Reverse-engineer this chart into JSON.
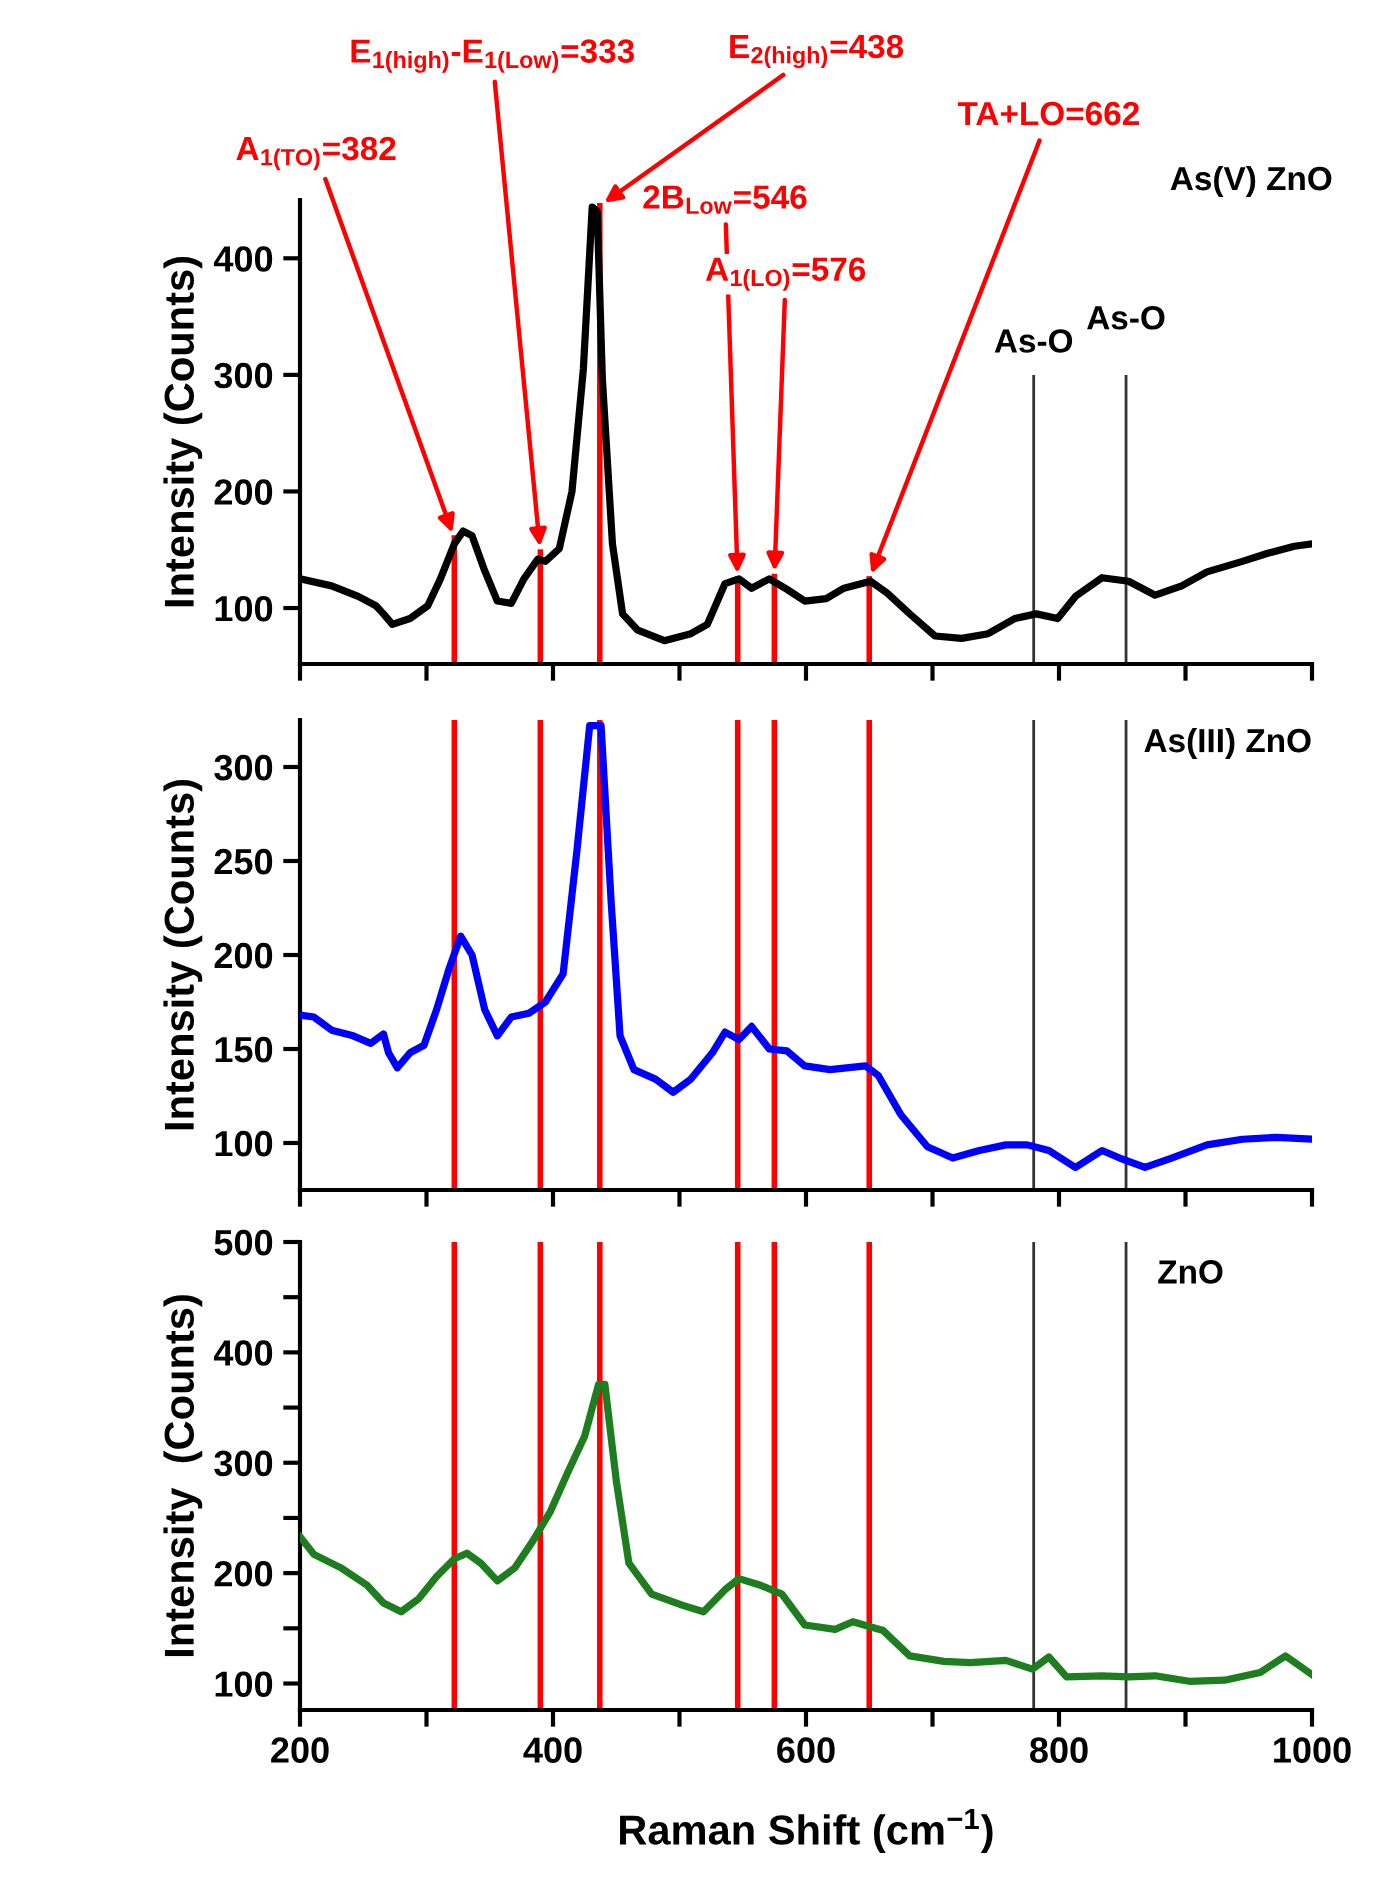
{
  "chart_data": [
    {
      "type": "line",
      "ylabel": "Intensity (Counts)",
      "xlim": [
        200,
        1000
      ],
      "ylim": [
        52,
        450
      ],
      "tick_labels": "y",
      "xticks": [
        {
          "value": 200,
          "label": null
        },
        {
          "value": 300,
          "label": null
        },
        {
          "value": 400,
          "label": null
        },
        {
          "value": 500,
          "label": null
        },
        {
          "value": 600,
          "label": null
        },
        {
          "value": 700,
          "label": null
        },
        {
          "value": 800,
          "label": null
        },
        {
          "value": 900,
          "label": null
        },
        {
          "value": 1000,
          "label": null
        }
      ],
      "yticks": [
        100,
        200,
        300,
        400
      ],
      "grid": false,
      "legend": false,
      "marker": "none",
      "line_style": "solid",
      "series": [
        {
          "color": "#000000",
          "x": [
            200,
            225,
            246,
            260,
            266,
            273,
            287,
            301,
            311,
            322,
            329,
            336,
            346,
            356,
            367,
            377,
            388,
            394,
            405,
            415,
            424,
            431,
            435,
            439,
            447,
            455,
            467,
            488,
            509,
            522,
            536,
            547,
            557,
            571,
            585,
            599,
            616,
            630,
            651,
            664,
            682,
            702,
            723,
            744,
            765,
            782,
            799,
            813,
            834,
            855,
            876,
            897,
            917,
            945,
            965,
            986,
            1000
          ],
          "values": [
            125,
            119,
            110,
            102,
            95,
            86,
            91,
            102,
            125,
            155,
            166,
            162,
            132,
            106,
            104,
            125,
            142,
            140,
            151,
            200,
            305,
            444,
            440,
            297,
            155,
            95,
            81,
            72,
            78,
            86,
            121,
            125,
            117,
            125,
            116,
            106,
            108,
            117,
            123,
            113,
            95,
            76,
            74,
            78,
            91,
            95,
            91,
            110,
            126,
            123,
            111,
            119,
            131,
            140,
            147,
            153,
            155
          ]
        }
      ],
      "ref_lines": [
        {
          "axis": "x",
          "value": 322,
          "color": "#ff0000"
        },
        {
          "axis": "x",
          "value": 390,
          "color": "#ff0000"
        },
        {
          "axis": "x",
          "value": 437,
          "color": "#ff0000"
        },
        {
          "axis": "x",
          "value": 546,
          "color": "#ff0000"
        },
        {
          "axis": "x",
          "value": 575,
          "color": "#ff0000"
        },
        {
          "axis": "x",
          "value": 650,
          "color": "#ff0000"
        },
        {
          "axis": "x",
          "value": 780,
          "label": "As-O",
          "color": "#333333"
        },
        {
          "axis": "x",
          "value": 853,
          "label": "As-O",
          "color": "#333333"
        }
      ],
      "annotations": [
        {
          "text": "A$_{1(TO)}$=382",
          "x": 322,
          "y": 160
        },
        {
          "text": "E$_{1(high)}$-E$_{1(Low)}$=333",
          "x": 390,
          "y": 148
        },
        {
          "text": "E$_{2(high)}$=438",
          "x": 437,
          "y": 445
        },
        {
          "text": "2B$_{Low}$=546",
          "x": 546,
          "y": 125
        },
        {
          "text": "A$_{1(LO)}$=576",
          "x": 575,
          "y": 127
        },
        {
          "text": "TA+LO=662",
          "x": 650,
          "y": 125
        },
        "As(V) ZnO"
      ]
    },
    {
      "type": "line",
      "ylabel": "Intensity (Counts)",
      "xlim": [
        200,
        1000
      ],
      "ylim": [
        75,
        325
      ],
      "tick_labels": "y",
      "xticks": [
        {
          "value": 200,
          "label": null
        },
        {
          "value": 300,
          "label": null
        },
        {
          "value": 400,
          "label": null
        },
        {
          "value": 500,
          "label": null
        },
        {
          "value": 600,
          "label": null
        },
        {
          "value": 700,
          "label": null
        },
        {
          "value": 800,
          "label": null
        },
        {
          "value": 900,
          "label": null
        },
        {
          "value": 1000,
          "label": null
        }
      ],
      "yticks": [
        100,
        150,
        200,
        250,
        300
      ],
      "grid": false,
      "legend": false,
      "marker": "none",
      "line_style": "solid",
      "series": [
        {
          "color": "#0000ff",
          "x": [
            200,
            211,
            225,
            242,
            256,
            266,
            270,
            277,
            287,
            298,
            308,
            318,
            327,
            336,
            346,
            356,
            367,
            381,
            394,
            408,
            419,
            429,
            438,
            446,
            453,
            464,
            481,
            495,
            509,
            526,
            536,
            547,
            557,
            571,
            585,
            599,
            619,
            647,
            657,
            675,
            696,
            716,
            737,
            758,
            775,
            792,
            813,
            834,
            848,
            868,
            889,
            917,
            945,
            972,
            1000
          ],
          "values": [
            168,
            167,
            160,
            157,
            153,
            158,
            148,
            140,
            148,
            152,
            171,
            193,
            210,
            200,
            171,
            157,
            167,
            169,
            175,
            190,
            256,
            322,
            322,
            228,
            157,
            139,
            134,
            127,
            134,
            148,
            159,
            155,
            162,
            150,
            149,
            141,
            139,
            141,
            136,
            115,
            98,
            92,
            96,
            99,
            99,
            96,
            87,
            96,
            92,
            87,
            92,
            99,
            102,
            103,
            102
          ]
        }
      ],
      "ref_lines": [
        {
          "axis": "x",
          "value": 322,
          "color": "#ff0000"
        },
        {
          "axis": "x",
          "value": 390,
          "color": "#ff0000"
        },
        {
          "axis": "x",
          "value": 437,
          "color": "#ff0000"
        },
        {
          "axis": "x",
          "value": 546,
          "color": "#ff0000"
        },
        {
          "axis": "x",
          "value": 575,
          "color": "#ff0000"
        },
        {
          "axis": "x",
          "value": 650,
          "color": "#ff0000"
        },
        {
          "axis": "x",
          "value": 780,
          "color": "#333333"
        },
        {
          "axis": "x",
          "value": 853,
          "color": "#333333"
        }
      ],
      "annotations": [
        "As(III) ZnO"
      ]
    },
    {
      "type": "line",
      "xlabel": "Raman Shift (cm$^{−1}$)",
      "ylabel": "Intensity  (Counts)",
      "xlim": [
        200,
        1000
      ],
      "ylim": [
        76,
        500
      ],
      "xticks": [
        200,
        {
          "value": 300,
          "label": null
        },
        400,
        {
          "value": 500,
          "label": null
        },
        600,
        {
          "value": 700,
          "label": null
        },
        800,
        {
          "value": 900,
          "label": null
        },
        1000
      ],
      "yticks": [
        100,
        {
          "value": 150,
          "label": null
        },
        200,
        {
          "value": 250,
          "label": null
        },
        300,
        {
          "value": 350,
          "label": null
        },
        400,
        {
          "value": 450,
          "label": null
        },
        500
      ],
      "grid": false,
      "legend": false,
      "marker": "none",
      "line_style": "solid",
      "series": [
        {
          "color": "#1e7d1e",
          "x": [
            200,
            211,
            232,
            253,
            266,
            280,
            294,
            308,
            322,
            332,
            343,
            356,
            370,
            384,
            398,
            412,
            425,
            436,
            441,
            450,
            460,
            478,
            502,
            519,
            536,
            547,
            564,
            581,
            599,
            623,
            637,
            661,
            682,
            709,
            730,
            758,
            779,
            792,
            806,
            834,
            855,
            876,
            903,
            931,
            959,
            979,
            1000
          ],
          "values": [
            233,
            217,
            205,
            189,
            173,
            165,
            177,
            197,
            213,
            218,
            209,
            193,
            205,
            229,
            256,
            292,
            324,
            371,
            371,
            284,
            209,
            181,
            171,
            165,
            185,
            195,
            189,
            181,
            153,
            149,
            156,
            148,
            125,
            120,
            119,
            121,
            113,
            124,
            106,
            107,
            106,
            107,
            102,
            103,
            110,
            125,
            108
          ]
        }
      ],
      "ref_lines": [
        {
          "axis": "x",
          "value": 322,
          "color": "#ff0000"
        },
        {
          "axis": "x",
          "value": 390,
          "color": "#ff0000"
        },
        {
          "axis": "x",
          "value": 437,
          "color": "#ff0000"
        },
        {
          "axis": "x",
          "value": 546,
          "color": "#ff0000"
        },
        {
          "axis": "x",
          "value": 575,
          "color": "#ff0000"
        },
        {
          "axis": "x",
          "value": 650,
          "color": "#ff0000"
        },
        {
          "axis": "x",
          "value": 780,
          "color": "#333333"
        },
        {
          "axis": "x",
          "value": 853,
          "color": "#333333"
        }
      ],
      "annotations": [
        "ZnO"
      ]
    }
  ]
}
